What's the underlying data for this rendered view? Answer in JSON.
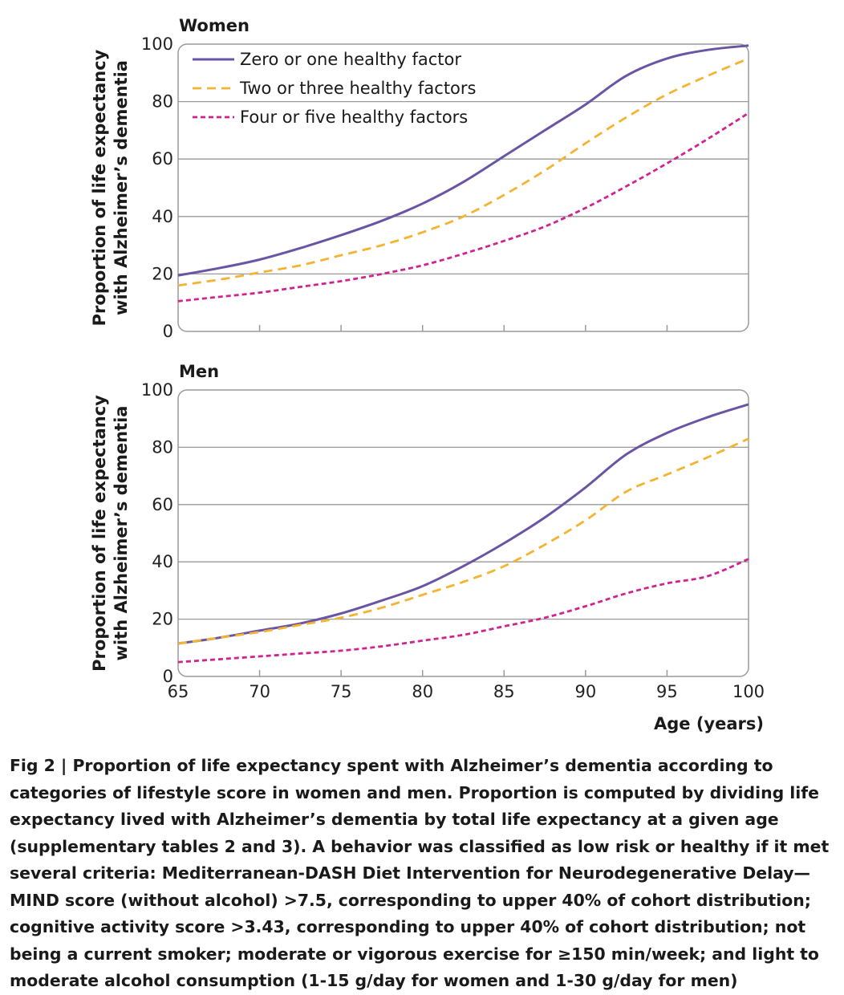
{
  "chart_data": [
    {
      "type": "line",
      "title": "Women",
      "ylabel_line1": "Proportion of life expectancy",
      "ylabel_line2": "with Alzheimer’s dementia",
      "xlabel": "",
      "xlim": [
        65,
        100
      ],
      "ylim": [
        0,
        100
      ],
      "yticks": [
        0,
        20,
        40,
        60,
        80,
        100
      ],
      "xticks": [
        65,
        70,
        75,
        80,
        85,
        90,
        95,
        100
      ],
      "show_xtick_labels": false,
      "grid": "horizontal",
      "legend": "top-left",
      "x": [
        65,
        67.5,
        70,
        72.5,
        75,
        77.5,
        80,
        82.5,
        85,
        87.5,
        90,
        92.5,
        95,
        97.5,
        100
      ],
      "series": [
        {
          "name": "Zero or one healthy factor",
          "style": "solid",
          "color": "#6a55a4",
          "values": [
            19.5,
            22,
            25,
            29,
            33.5,
            38.5,
            44.5,
            52,
            61,
            70,
            79,
            89,
            95,
            98,
            99.5
          ]
        },
        {
          "name": "Two or three healthy factors",
          "style": "dashed",
          "color": "#f4b331",
          "values": [
            16,
            18,
            20.5,
            23,
            26.5,
            30,
            34.5,
            40,
            47.5,
            56,
            65.5,
            74.5,
            82.5,
            89,
            95
          ]
        },
        {
          "name": "Four or five healthy factors",
          "style": "dotted",
          "color": "#cf2490",
          "values": [
            10.5,
            12,
            13.5,
            15.5,
            17.5,
            20,
            23,
            27,
            31.5,
            36.5,
            43,
            50.5,
            58.5,
            67,
            76
          ]
        }
      ]
    },
    {
      "type": "line",
      "title": "Men",
      "ylabel_line1": "Proportion of life expectancy",
      "ylabel_line2": "with Alzheimer’s dementia",
      "xlabel": "Age (years)",
      "xlim": [
        65,
        100
      ],
      "ylim": [
        0,
        100
      ],
      "yticks": [
        0,
        20,
        40,
        60,
        80,
        100
      ],
      "xticks": [
        65,
        70,
        75,
        80,
        85,
        90,
        95,
        100
      ],
      "show_xtick_labels": true,
      "grid": "horizontal",
      "legend": "none",
      "x": [
        65,
        67.5,
        70,
        72.5,
        75,
        77.5,
        80,
        82.5,
        85,
        87.5,
        90,
        92.5,
        95,
        97.5,
        100
      ],
      "series": [
        {
          "name": "Zero or one healthy factor",
          "style": "solid",
          "color": "#6a55a4",
          "values": [
            11.5,
            13.5,
            16,
            18.5,
            22,
            26.5,
            31.5,
            38.5,
            46.5,
            55.5,
            66,
            77.5,
            85,
            90.5,
            95
          ]
        },
        {
          "name": "Two or three healthy factors",
          "style": "dashed",
          "color": "#f4b331",
          "values": [
            11.5,
            13.5,
            15.5,
            18,
            20.5,
            24,
            28.5,
            33,
            38.5,
            46,
            54.5,
            64.5,
            70.5,
            76.5,
            83
          ]
        },
        {
          "name": "Four or five healthy factors",
          "style": "dotted",
          "color": "#cf2490",
          "values": [
            5,
            6,
            7,
            8,
            9,
            10.5,
            12.5,
            14.5,
            17.5,
            20.5,
            24.5,
            29,
            32.5,
            35,
            41
          ]
        }
      ]
    }
  ],
  "caption": {
    "lead": "Fig 2 | ",
    "text": "Proportion of life expectancy spent with Alzheimer’s dementia according to categories of lifestyle score in women and men. Proportion is computed by dividing life expectancy lived with Alzheimer’s dementia by total life expectancy at a given age (supplementary tables 2 and 3). A behavior was classified as low risk or healthy if it met several criteria: Mediterranean-DASH Diet Intervention for Neurodegenerative Delay—MIND score (without alcohol) >7.5, corresponding to upper 40% of cohort distribution; cognitive activity score >3.43, corresponding to upper 40% of cohort distribution; not being a current smoker; moderate or vigorous exercise for ≥150 min/week; and light to moderate alcohol consumption (1-15 g/day for women and 1-30 g/day for men)"
  }
}
